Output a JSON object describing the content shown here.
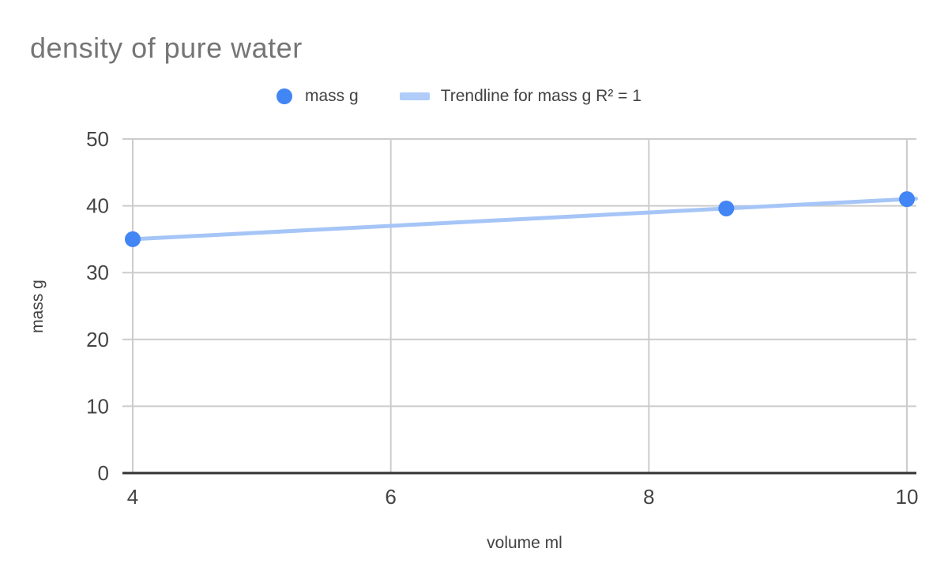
{
  "chart_data": {
    "type": "scatter",
    "title": "density of pure water",
    "xlabel": "volume ml",
    "ylabel": "mass g",
    "xlim": [
      4,
      10
    ],
    "ylim": [
      0,
      50
    ],
    "x_ticks": [
      4,
      6,
      8,
      10
    ],
    "y_ticks": [
      0,
      10,
      20,
      30,
      40,
      50
    ],
    "grid": true,
    "legend_position": "top",
    "series": [
      {
        "name": "mass g",
        "points": [
          [
            4,
            35
          ],
          [
            8.6,
            39.6
          ],
          [
            10,
            41
          ]
        ],
        "color": "#4285f4"
      }
    ],
    "trendline": {
      "label": "Trendline for mass g R² = 1",
      "r_squared": 1,
      "points": [
        [
          4,
          35
        ],
        [
          10.07,
          41.07
        ]
      ],
      "color": "#a6c5f7"
    },
    "colors": {
      "gridline": "#cccccc",
      "axis_line": "#333333",
      "tick_label": "#444444",
      "title": "#757575",
      "text": "#424242",
      "background": "#ffffff"
    }
  }
}
